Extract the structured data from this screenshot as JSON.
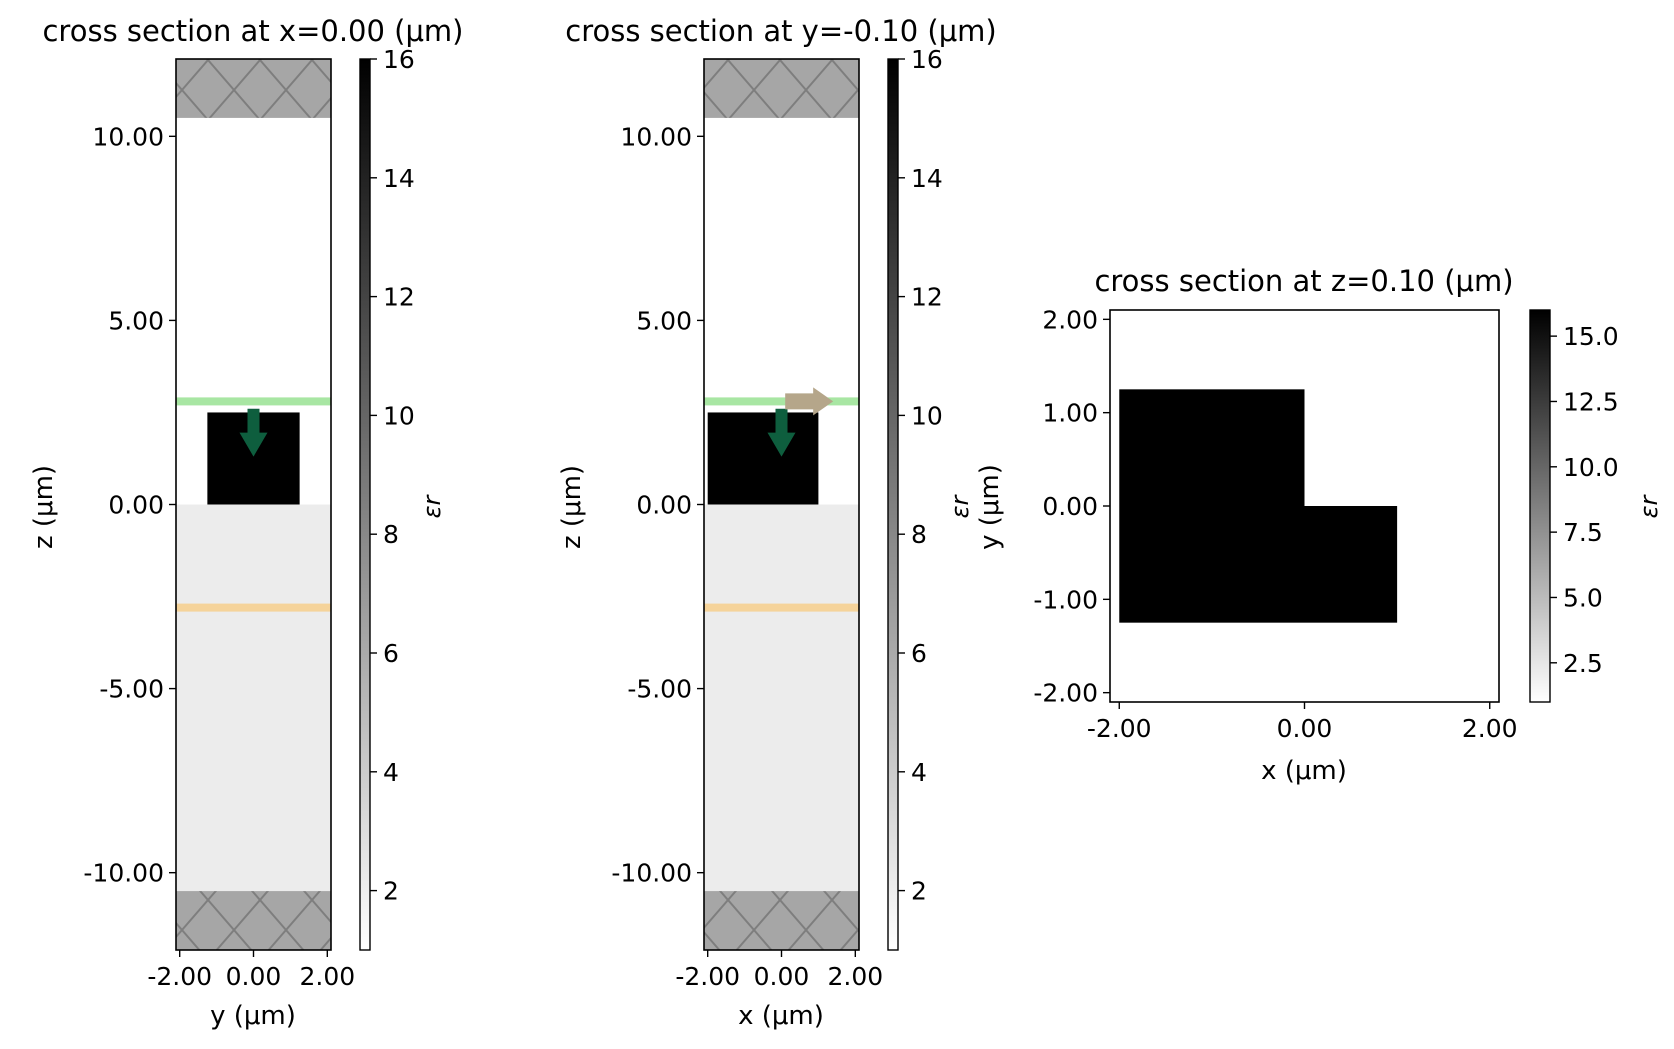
{
  "chart_data": [
    {
      "type": "heatmap",
      "title": "cross section at x=0.00 (μm)",
      "xlabel": "y (μm)",
      "ylabel": "z (μm)",
      "xlim": [
        -2.1,
        2.1
      ],
      "ylim": [
        -12.1,
        12.1
      ],
      "xticks": [
        -2,
        0,
        2
      ],
      "xtick_labels": [
        "-2.00",
        "0.00",
        "2.00"
      ],
      "yticks": [
        -10,
        -5,
        0,
        5,
        10
      ],
      "ytick_labels": [
        "-10.00",
        "-5.00",
        "0.00",
        "5.00",
        "10.00"
      ],
      "colorbar": {
        "label": "εr",
        "range": [
          1,
          16
        ],
        "ticks": [
          2,
          4,
          6,
          8,
          10,
          12,
          14,
          16
        ],
        "tick_labels": [
          "2",
          "4",
          "6",
          "8",
          "10",
          "12",
          "14",
          "16"
        ]
      },
      "regions": [
        {
          "name": "substrate",
          "x": [
            -2.1,
            2.1
          ],
          "y": [
            -12.1,
            0
          ],
          "permittivity": 2.1
        },
        {
          "name": "waveguide",
          "x": [
            -1.25,
            1.25
          ],
          "y": [
            0,
            2.5
          ],
          "permittivity": 16
        },
        {
          "name": "pml-top",
          "x": [
            -2.1,
            2.1
          ],
          "y": [
            10.5,
            12.1
          ]
        },
        {
          "name": "pml-bottom",
          "x": [
            -2.1,
            2.1
          ],
          "y": [
            -12.1,
            -10.5
          ]
        }
      ],
      "monitors": [
        {
          "name": "flux-monitor",
          "y": 2.8,
          "color": "#a8e6a3"
        },
        {
          "name": "source-plane",
          "y": -2.8,
          "color": "#f5d39a"
        }
      ],
      "arrows": [
        {
          "name": "injection-arrow",
          "x": 0,
          "y_from": 2.6,
          "y_to": 1.3,
          "color": "#0e5e3e"
        }
      ]
    },
    {
      "type": "heatmap",
      "title": "cross section at y=-0.10 (μm)",
      "xlabel": "x (μm)",
      "ylabel": "z (μm)",
      "xlim": [
        -2.1,
        2.1
      ],
      "ylim": [
        -12.1,
        12.1
      ],
      "xticks": [
        -2,
        0,
        2
      ],
      "xtick_labels": [
        "-2.00",
        "0.00",
        "2.00"
      ],
      "yticks": [
        -10,
        -5,
        0,
        5,
        10
      ],
      "ytick_labels": [
        "-10.00",
        "-5.00",
        "0.00",
        "5.00",
        "10.00"
      ],
      "colorbar": {
        "label": "εr",
        "range": [
          1,
          16
        ],
        "ticks": [
          2,
          4,
          6,
          8,
          10,
          12,
          14,
          16
        ],
        "tick_labels": [
          "2",
          "4",
          "6",
          "8",
          "10",
          "12",
          "14",
          "16"
        ]
      },
      "regions": [
        {
          "name": "substrate",
          "x": [
            -2.1,
            2.1
          ],
          "y": [
            -12.1,
            0
          ],
          "permittivity": 2.1
        },
        {
          "name": "waveguide",
          "x": [
            -2.0,
            1.0
          ],
          "y": [
            0,
            2.5
          ],
          "permittivity": 16
        },
        {
          "name": "pml-top",
          "x": [
            -2.1,
            2.1
          ],
          "y": [
            10.5,
            12.1
          ]
        },
        {
          "name": "pml-bottom",
          "x": [
            -2.1,
            2.1
          ],
          "y": [
            -12.1,
            -10.5
          ]
        }
      ],
      "monitors": [
        {
          "name": "flux-monitor",
          "y": 2.8,
          "color": "#a8e6a3"
        },
        {
          "name": "source-plane",
          "y": -2.8,
          "color": "#f5d39a"
        }
      ],
      "arrows": [
        {
          "name": "injection-arrow",
          "x": 0,
          "y_from": 2.6,
          "y_to": 1.3,
          "color": "#0e5e3e"
        },
        {
          "name": "polarization-arrow",
          "x_from": 0.1,
          "x_to": 1.4,
          "y": 2.8,
          "color": "#b5a68a"
        }
      ]
    },
    {
      "type": "heatmap",
      "title": "cross section at z=0.10 (μm)",
      "xlabel": "x (μm)",
      "ylabel": "y (μm)",
      "xlim": [
        -2.1,
        2.1
      ],
      "ylim": [
        -2.1,
        2.1
      ],
      "xticks": [
        -2,
        0,
        2
      ],
      "xtick_labels": [
        "-2.00",
        "0.00",
        "2.00"
      ],
      "yticks": [
        -2,
        -1,
        0,
        1,
        2
      ],
      "ytick_labels": [
        "-2.00",
        "-1.00",
        "0.00",
        "1.00",
        "2.00"
      ],
      "colorbar": {
        "label": "εr",
        "range": [
          1,
          16
        ],
        "ticks": [
          2.5,
          5,
          7.5,
          10,
          12.5,
          15
        ],
        "tick_labels": [
          "2.5",
          "5.0",
          "7.5",
          "10.0",
          "12.5",
          "15.0"
        ]
      },
      "regions": [
        {
          "name": "waveguide-left",
          "x": [
            -2.0,
            0.0
          ],
          "y": [
            -1.25,
            1.25
          ],
          "permittivity": 16
        },
        {
          "name": "waveguide-right",
          "x": [
            0.0,
            1.0
          ],
          "y": [
            -1.25,
            0.0
          ],
          "permittivity": 16
        }
      ],
      "monitors": [],
      "arrows": []
    }
  ]
}
